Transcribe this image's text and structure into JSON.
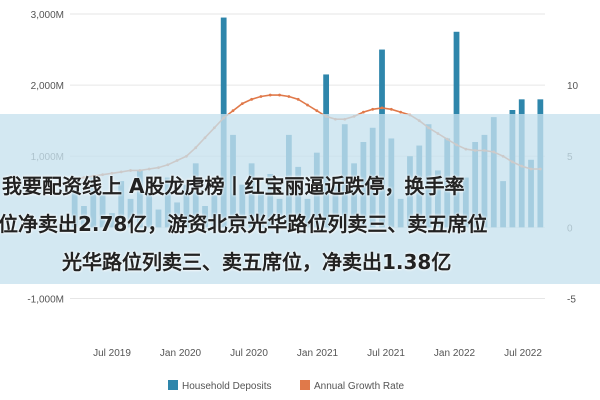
{
  "chart_data": {
    "type": "bar+line",
    "x_ticks": [
      "Jul 2019",
      "Jan 2020",
      "Jul 2020",
      "Jan 2021",
      "Jul 2021",
      "Jan 2022",
      "Jul 2022"
    ],
    "ylim_left": [
      -1500,
      3000
    ],
    "ylim_right": [
      -7.5,
      15
    ],
    "left_ticks": [
      "3,000M",
      "2,000M",
      "1,000M",
      "0",
      "-1,000M"
    ],
    "left_tick_values": [
      3000,
      2000,
      1000,
      0,
      -1000
    ],
    "right_ticks": [
      "10",
      "5",
      "0",
      "-5"
    ],
    "right_tick_values": [
      10,
      5,
      0,
      -5
    ],
    "legend_position": "bottom",
    "series": [
      {
        "name": "Household Deposits",
        "type": "bar",
        "color": "#2e86ab",
        "values": [
          550,
          300,
          700,
          450,
          200,
          650,
          400,
          800,
          500,
          250,
          700,
          350,
          600,
          900,
          300,
          450,
          2950,
          1300,
          600,
          900,
          500,
          750,
          400,
          1300,
          850,
          400,
          1050,
          2150,
          650,
          1450,
          900,
          1200,
          1400,
          2500,
          1250,
          400,
          1000,
          1150,
          1450,
          800,
          1250,
          2750,
          700,
          1200,
          1300,
          1550,
          650,
          1650,
          1800,
          950,
          1800
        ]
      },
      {
        "name": "Annual Growth Rate",
        "type": "line",
        "color": "#e0794a",
        "values": [
          3.4,
          3.5,
          3.6,
          3.7,
          3.8,
          3.9,
          4.0,
          4.0,
          4.1,
          4.2,
          4.4,
          4.7,
          5.0,
          5.6,
          6.3,
          7.0,
          7.7,
          8.2,
          8.7,
          9.0,
          9.2,
          9.3,
          9.3,
          9.2,
          9.0,
          8.6,
          8.2,
          7.8,
          7.6,
          7.6,
          7.8,
          8.1,
          8.3,
          8.4,
          8.3,
          8.1,
          7.9,
          7.5,
          7.0,
          6.6,
          6.2,
          5.8,
          5.5,
          5.4,
          5.4,
          5.3,
          5.0,
          4.6,
          4.3,
          4.1,
          4.1
        ]
      }
    ]
  },
  "overlay": {
    "headline_lines": [
      "我要配资线上 A股龙虎榜丨红宝丽逼近跌停，换手率",
      "位净卖出2.78亿，游资北京光华路位列卖三、卖五席位",
      "光华路位列卖三、卖五席位，净卖出1.38亿"
    ]
  }
}
